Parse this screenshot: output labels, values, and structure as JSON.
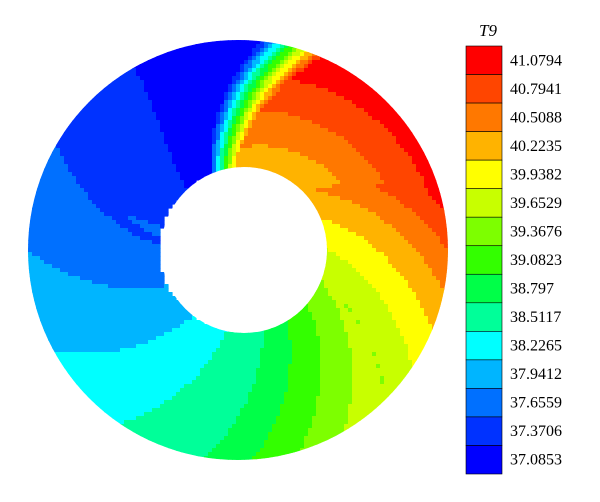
{
  "chart_data": {
    "type": "heatmap",
    "title": "",
    "variable": "T9",
    "colorbar": {
      "title": "T9",
      "levels": [
        41.0794,
        40.7941,
        40.5088,
        40.2235,
        39.9382,
        39.6529,
        39.3676,
        39.0823,
        38.797,
        38.5117,
        38.2265,
        37.9412,
        37.6559,
        37.3706,
        37.0853
      ],
      "level_labels": [
        "41.0794",
        "40.7941",
        "40.5088",
        "40.2235",
        "39.9382",
        "39.6529",
        "39.3676",
        "39.0823",
        "38.797",
        "38.5117",
        "38.2265",
        "37.9412",
        "37.6559",
        "37.3706",
        "37.0853"
      ],
      "colors": [
        "#ff0000",
        "#ff4500",
        "#ff7800",
        "#ffb300",
        "#ffff00",
        "#c8ff00",
        "#7dff00",
        "#33ff00",
        "#00ff48",
        "#00ff99",
        "#00ffff",
        "#00b5ff",
        "#0070ff",
        "#0032ff",
        "#0000ff"
      ],
      "placement": "right"
    },
    "field": {
      "shape": "annulus",
      "min": 37.0853,
      "max": 41.0794,
      "hot_side": "right",
      "cold_side": "top-left"
    }
  }
}
